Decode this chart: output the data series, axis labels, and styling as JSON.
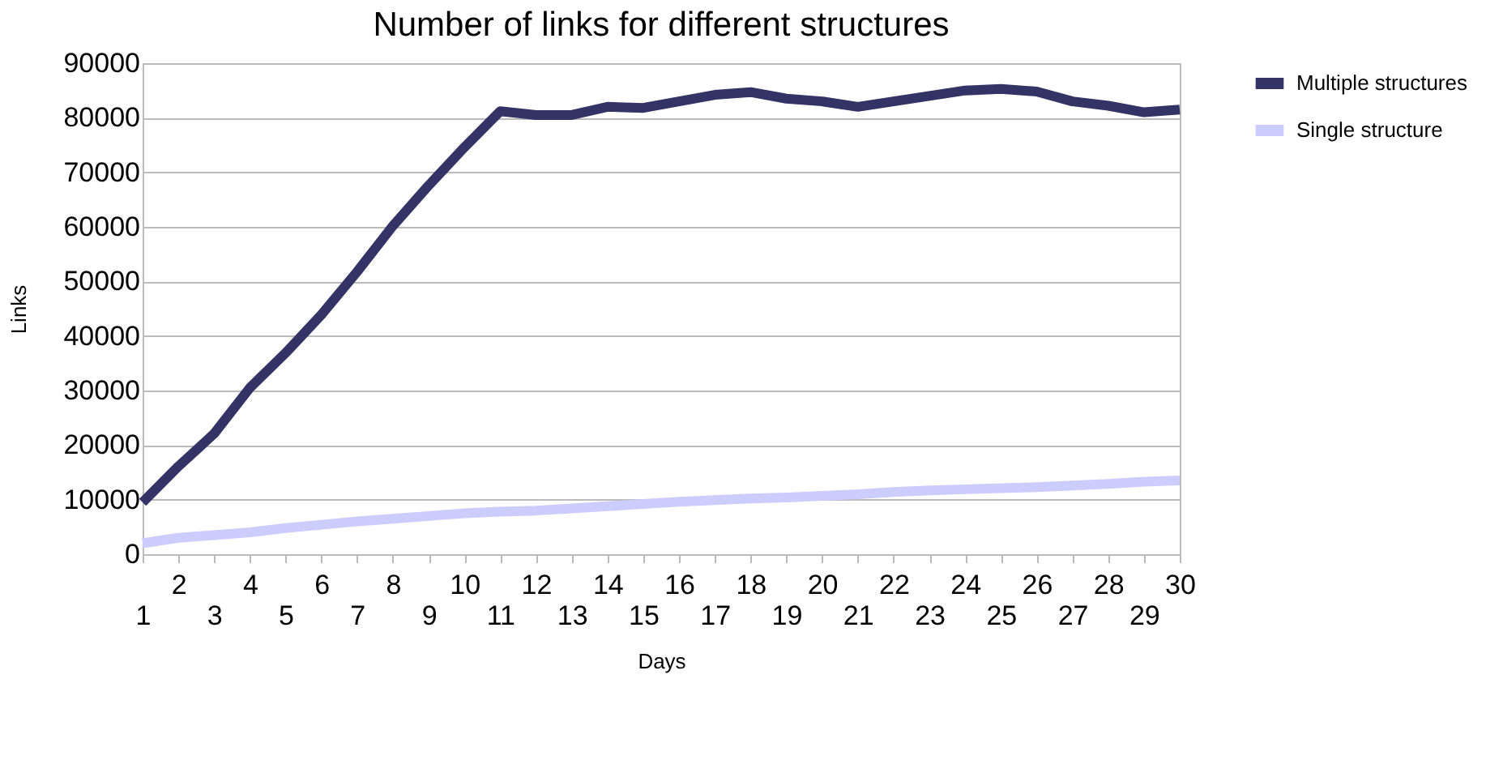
{
  "chart_data": {
    "type": "line",
    "title": "Number of links for different structures",
    "xlabel": "Days",
    "ylabel": "Links",
    "categories": [
      "1",
      "2",
      "3",
      "4",
      "5",
      "6",
      "7",
      "8",
      "9",
      "10",
      "11",
      "12",
      "13",
      "14",
      "15",
      "16",
      "17",
      "18",
      "19",
      "20",
      "21",
      "22",
      "23",
      "24",
      "25",
      "26",
      "27",
      "28",
      "29",
      "30"
    ],
    "series": [
      {
        "name": "Multiple structures",
        "color": "#333366",
        "values": [
          9500,
          16100,
          22100,
          30500,
          36900,
          43900,
          51800,
          60200,
          67600,
          74600,
          81200,
          80500,
          80500,
          82000,
          81800,
          83000,
          84200,
          84700,
          83500,
          83000,
          82000,
          83000,
          84000,
          85000,
          85300,
          84800,
          83000,
          82200,
          81000,
          81500
        ]
      },
      {
        "name": "Single structure",
        "color": "#ccccff",
        "values": [
          2000,
          3000,
          3500,
          4000,
          4800,
          5400,
          6000,
          6500,
          7000,
          7500,
          7800,
          8000,
          8400,
          8800,
          9200,
          9600,
          9900,
          10200,
          10400,
          10700,
          11000,
          11400,
          11700,
          11900,
          12100,
          12300,
          12600,
          12900,
          13300,
          13500
        ]
      }
    ],
    "ylim": [
      0,
      90000
    ],
    "yticks": [
      0,
      10000,
      20000,
      30000,
      40000,
      50000,
      60000,
      70000,
      80000,
      90000
    ],
    "grid": "y",
    "legend": "right",
    "line_style": "solid",
    "marker": "none"
  }
}
